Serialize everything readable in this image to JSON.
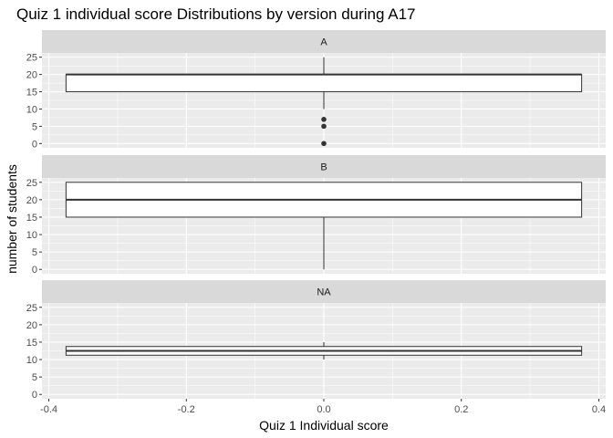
{
  "chart_data": {
    "type": "boxplot",
    "title": "Quiz 1 individual score Distributions by version during A17",
    "xlabel": "Quiz 1 Individual score",
    "ylabel": "number of students",
    "xlim": [
      -0.41,
      0.41
    ],
    "ylim": [
      -1.25,
      26.25
    ],
    "x_ticks": [
      -0.4,
      -0.2,
      0.0,
      0.2,
      0.4
    ],
    "x_tick_labels": [
      "-0.4",
      "-0.2",
      "0.0",
      "0.2",
      "0.4"
    ],
    "y_ticks": [
      0,
      5,
      10,
      15,
      20,
      25
    ],
    "y_tick_labels": [
      "0",
      "5",
      "10",
      "15",
      "20",
      "25"
    ],
    "box_x_range": [
      -0.375,
      0.375
    ],
    "facets": [
      {
        "label": "A",
        "lower_whisker": 10,
        "q1": 15,
        "median": 20,
        "q3": 20,
        "upper_whisker": 25,
        "outliers": [
          7,
          5,
          0
        ]
      },
      {
        "label": "B",
        "lower_whisker": 0,
        "q1": 15,
        "median": 20,
        "q3": 25,
        "upper_whisker": 25,
        "outliers": []
      },
      {
        "label": "NA",
        "lower_whisker": 10,
        "q1": 11.25,
        "median": 12.5,
        "q3": 13.75,
        "upper_whisker": 15,
        "outliers": []
      }
    ],
    "grid": true,
    "colors": {
      "panel_bg": "#ebebeb",
      "strip_bg": "#d9d9d9",
      "grid": "#ffffff",
      "box_fill": "#ffffff",
      "box_line": "#333333",
      "outlier": "#333333"
    }
  }
}
